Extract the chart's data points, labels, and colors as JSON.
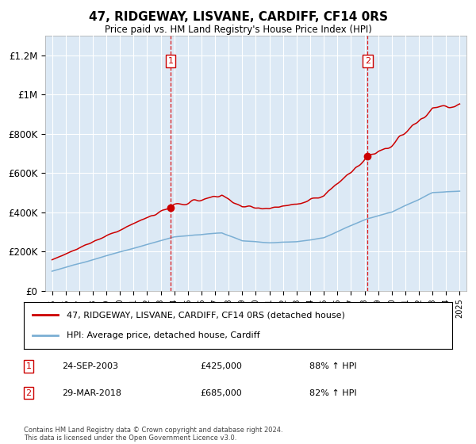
{
  "title": "47, RIDGEWAY, LISVANE, CARDIFF, CF14 0RS",
  "subtitle": "Price paid vs. HM Land Registry's House Price Index (HPI)",
  "legend_line1": "47, RIDGEWAY, LISVANE, CARDIFF, CF14 0RS (detached house)",
  "legend_line2": "HPI: Average price, detached house, Cardiff",
  "sale1_label": "1",
  "sale1_date": "24-SEP-2003",
  "sale1_price": "£425,000",
  "sale1_hpi": "88% ↑ HPI",
  "sale1_year": 2003.73,
  "sale1_value": 425000,
  "sale2_label": "2",
  "sale2_date": "29-MAR-2018",
  "sale2_price": "£685,000",
  "sale2_hpi": "82% ↑ HPI",
  "sale2_year": 2018.23,
  "sale2_value": 685000,
  "background_color": "#ffffff",
  "chart_bg_color": "#dce9f5",
  "grid_color": "#ffffff",
  "red_line_color": "#cc0000",
  "blue_line_color": "#7bafd4",
  "vline_color": "#dd0000",
  "ylim": [
    0,
    1300000
  ],
  "xlim_start": 1994.5,
  "xlim_end": 2025.5,
  "footnote": "Contains HM Land Registry data © Crown copyright and database right 2024.\nThis data is licensed under the Open Government Licence v3.0."
}
